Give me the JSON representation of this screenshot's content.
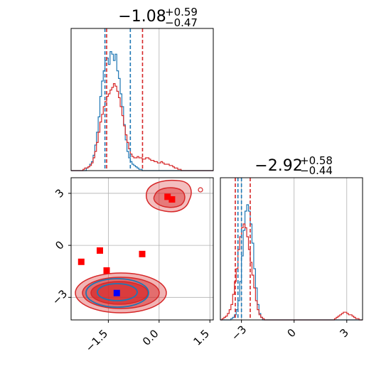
{
  "chart_data": {
    "type": "corner",
    "colors": {
      "series_a": "#d62728",
      "series_b": "#1f77b4",
      "point_a": "#ff0000",
      "point_b": "#0000ff",
      "grid": "#b0b0b0"
    },
    "grid": true,
    "panels": [
      {
        "id": "hist_x",
        "type": "histogram",
        "title": {
          "value": "−1.08",
          "plus": "+0.59",
          "minus": "−0.47"
        },
        "xlim": [
          -2.6,
          1.6
        ],
        "series": [
          {
            "color": "series_b",
            "quantiles": [
              -1.6,
              -0.85
            ],
            "bins": {
              "start": -2.6,
              "width": 0.05,
              "heights": [
                0,
                0,
                0,
                0,
                0,
                0,
                0,
                0,
                0,
                0.02,
                0.03,
                0.05,
                0.07,
                0.12,
                0.2,
                0.3,
                0.42,
                0.58,
                0.7,
                0.78,
                0.86,
                0.88,
                0.83,
                0.93,
                0.91,
                0.86,
                0.91,
                0.78,
                0.72,
                0.6,
                0.5,
                0.36,
                0.24,
                0.15,
                0.1,
                0.07,
                0.05,
                0.04,
                0.03,
                0.02,
                0.01,
                0.01,
                0,
                0,
                0,
                0,
                0,
                0,
                0,
                0,
                0,
                0,
                0,
                0,
                0,
                0,
                0,
                0,
                0,
                0,
                0,
                0,
                0,
                0,
                0,
                0,
                0,
                0,
                0,
                0,
                0,
                0,
                0,
                0,
                0,
                0,
                0,
                0,
                0,
                0,
                0,
                0,
                0,
                0
              ]
            }
          },
          {
            "color": "series_a",
            "quantiles": [
              -1.55,
              -0.49
            ],
            "bins": {
              "start": -2.6,
              "width": 0.05,
              "heights": [
                0,
                0,
                0,
                0,
                0,
                0,
                0,
                0.01,
                0.02,
                0.02,
                0.03,
                0.04,
                0.06,
                0.1,
                0.15,
                0.22,
                0.3,
                0.38,
                0.44,
                0.5,
                0.54,
                0.58,
                0.6,
                0.63,
                0.65,
                0.68,
                0.66,
                0.62,
                0.57,
                0.5,
                0.43,
                0.35,
                0.28,
                0.22,
                0.17,
                0.13,
                0.11,
                0.1,
                0.1,
                0.11,
                0.1,
                0.1,
                0.09,
                0.09,
                0.1,
                0.1,
                0.09,
                0.08,
                0.08,
                0.07,
                0.07,
                0.06,
                0.06,
                0.07,
                0.06,
                0.05,
                0.05,
                0.05,
                0.04,
                0.04,
                0.03,
                0.02,
                0.02,
                0.01,
                0.01,
                0,
                0,
                0,
                0,
                0,
                0,
                0,
                0,
                0,
                0,
                0,
                0,
                0,
                0,
                0,
                0,
                0,
                0,
                0
              ]
            }
          }
        ]
      },
      {
        "id": "hist_y",
        "type": "histogram",
        "title": {
          "value": "−2.92",
          "plus": "+0.58",
          "minus": "−0.44"
        },
        "xlim": [
          -4.2,
          3.9
        ],
        "xticks": [
          -3,
          0,
          3
        ],
        "xticklabels": [
          "−3",
          "0",
          "3"
        ],
        "series": [
          {
            "color": "series_b",
            "quantiles": [
              -3.2,
              -3.0
            ],
            "bins": {
              "start": -4.2,
              "width": 0.1,
              "heights": [
                0,
                0,
                0,
                0,
                0,
                0,
                0.01,
                0.02,
                0.04,
                0.08,
                0.15,
                0.3,
                0.5,
                0.7,
                0.85,
                0.9,
                0.85,
                0.75,
                0.6,
                0.4,
                0.25,
                0.12,
                0.05,
                0.02,
                0,
                0,
                0,
                0,
                0,
                0,
                0,
                0,
                0,
                0,
                0,
                0,
                0,
                0,
                0,
                0,
                0,
                0,
                0,
                0,
                0,
                0,
                0,
                0,
                0,
                0,
                0,
                0,
                0,
                0,
                0,
                0,
                0,
                0,
                0,
                0,
                0,
                0,
                0,
                0,
                0,
                0,
                0,
                0,
                0,
                0,
                0,
                0,
                0,
                0,
                0,
                0,
                0,
                0,
                0,
                0,
                0
              ]
            }
          },
          {
            "color": "series_a",
            "quantiles": [
              -3.35,
              -2.5
            ],
            "bins": {
              "start": -4.2,
              "width": 0.1,
              "heights": [
                0,
                0.01,
                0.02,
                0.03,
                0.05,
                0.08,
                0.12,
                0.2,
                0.3,
                0.4,
                0.55,
                0.65,
                0.72,
                0.75,
                0.72,
                0.65,
                0.55,
                0.45,
                0.35,
                0.25,
                0.15,
                0.08,
                0.04,
                0.02,
                0.01,
                0,
                0,
                0,
                0,
                0,
                0,
                0,
                0,
                0,
                0,
                0,
                0,
                0,
                0,
                0,
                0,
                0,
                0,
                0,
                0,
                0,
                0,
                0,
                0,
                0,
                0,
                0,
                0,
                0,
                0,
                0,
                0,
                0,
                0,
                0,
                0,
                0,
                0,
                0,
                0,
                0.01,
                0.02,
                0.03,
                0.04,
                0.05,
                0.06,
                0.06,
                0.05,
                0.04,
                0.04,
                0.03,
                0.02,
                0.01,
                0.01,
                0,
                0
              ]
            }
          }
        ]
      },
      {
        "id": "scatter_xy",
        "type": "contour",
        "xlim": [
          -2.6,
          1.6
        ],
        "ylim": [
          -4.3,
          3.9
        ],
        "xticks": [
          -1.5,
          0.0,
          1.5
        ],
        "xticklabels": [
          "−1.5",
          "0.0",
          "1.5"
        ],
        "yticks": [
          -3,
          0,
          3
        ],
        "yticklabels": [
          "−3",
          "0",
          "3"
        ],
        "markers_a": [
          [
            -2.3,
            -0.95
          ],
          [
            -1.75,
            -0.3
          ],
          [
            -1.55,
            -1.45
          ],
          [
            -0.5,
            -0.5
          ],
          [
            0.25,
            2.8
          ],
          [
            0.38,
            2.65
          ]
        ],
        "markers_b": [
          [
            -1.25,
            -2.75
          ]
        ]
      }
    ]
  }
}
